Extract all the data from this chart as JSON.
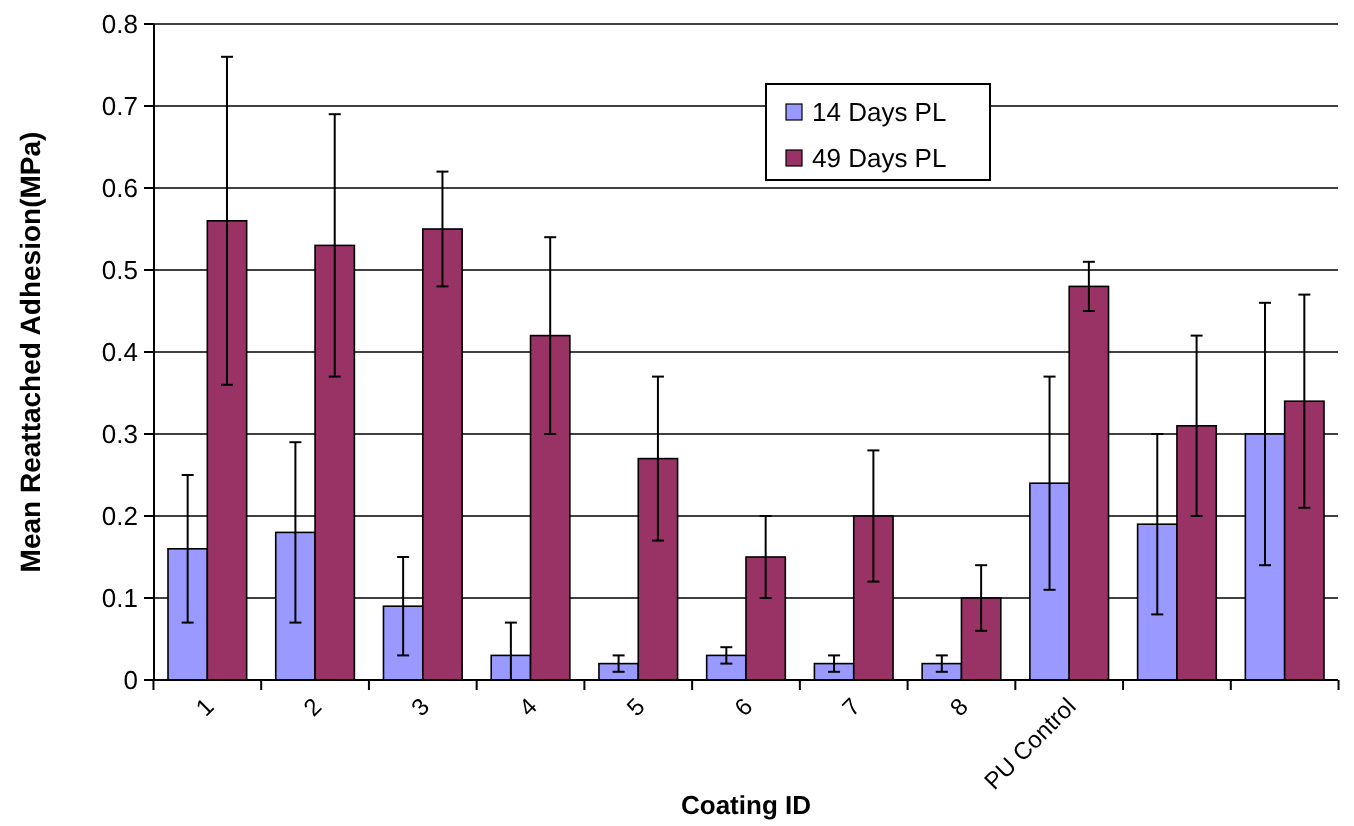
{
  "chart_data": {
    "type": "bar",
    "xlabel": "Coating ID",
    "ylabel": "Mean Reattached Adhesion(MPa)",
    "categories": [
      "1",
      "2",
      "3",
      "4",
      "5",
      "6",
      "7",
      "8",
      "PU Control",
      null,
      null
    ],
    "series": [
      {
        "name": "14 Days PL",
        "color": "#9999ff",
        "values": [
          0.16,
          0.18,
          0.09,
          0.03,
          0.02,
          0.03,
          0.02,
          0.02,
          0.24,
          0.19,
          0.3
        ],
        "errors": [
          0.09,
          0.11,
          0.06,
          [
            0,
            0.07
          ],
          0.01,
          0.01,
          0.01,
          0.01,
          0.13,
          0.11,
          0.16
        ]
      },
      {
        "name": "49 Days PL",
        "color": "#993366",
        "values": [
          0.56,
          0.53,
          0.55,
          0.42,
          0.27,
          0.15,
          0.2,
          0.1,
          0.48,
          0.31,
          0.34
        ],
        "errors": [
          0.2,
          0.16,
          0.07,
          0.12,
          0.1,
          0.05,
          0.08,
          0.04,
          0.03,
          0.11,
          0.13
        ]
      }
    ],
    "ylim": [
      0,
      0.8
    ],
    "yticks": [
      0,
      0.1,
      0.2,
      0.3,
      0.4,
      0.5,
      0.6,
      0.7,
      0.8
    ],
    "grid": "y",
    "legend": "top"
  }
}
